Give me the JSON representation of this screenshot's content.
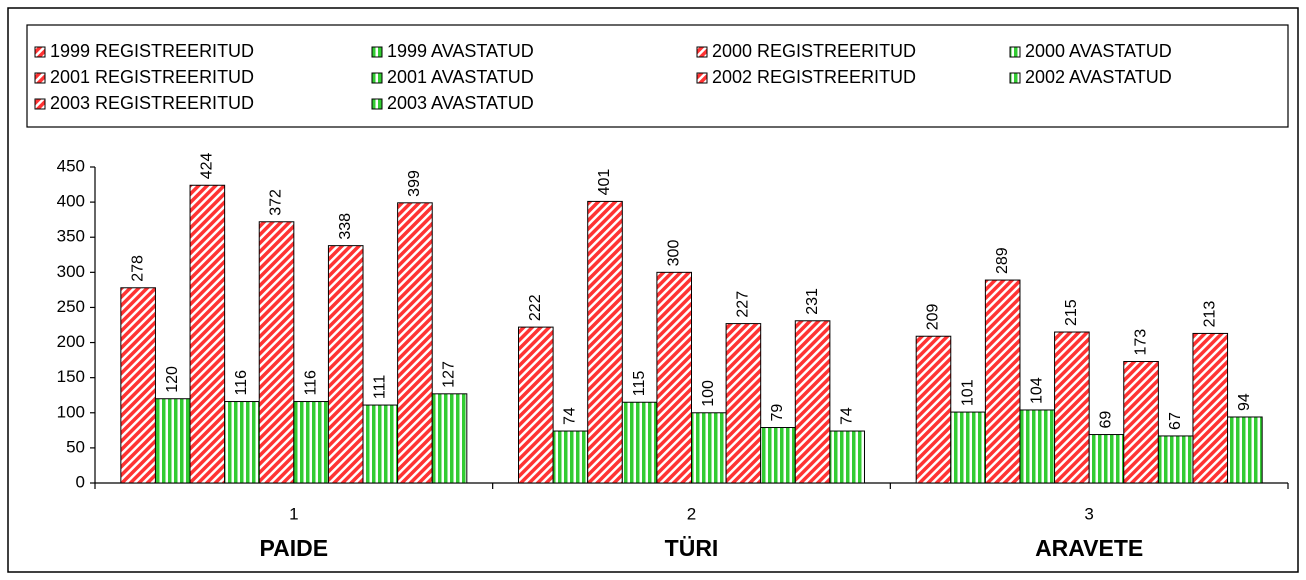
{
  "chart_data": {
    "type": "bar",
    "categories": [
      "1",
      "2",
      "3"
    ],
    "group_labels": [
      "PAIDE",
      "TÜRI",
      "ARAVETE"
    ],
    "series": [
      {
        "name": "1999 REGISTREERITUD",
        "color": "#ff3333",
        "hatch": "diagonal",
        "values": [
          278,
          222,
          209
        ]
      },
      {
        "name": "1999 AVASTATUD",
        "color": "#33cc33",
        "hatch": "vertical",
        "values": [
          120,
          74,
          101
        ]
      },
      {
        "name": "2000 REGISTREERITUD",
        "color": "#ff3333",
        "hatch": "diagonal",
        "values": [
          424,
          401,
          289
        ]
      },
      {
        "name": "2000 AVASTATUD",
        "color": "#33cc33",
        "hatch": "vertical",
        "values": [
          116,
          115,
          104
        ]
      },
      {
        "name": "2001 REGISTREERITUD",
        "color": "#ff3333",
        "hatch": "diagonal",
        "values": [
          372,
          300,
          215
        ]
      },
      {
        "name": "2001 AVASTATUD",
        "color": "#33cc33",
        "hatch": "vertical",
        "values": [
          116,
          100,
          69
        ]
      },
      {
        "name": "2002 REGISTREERITUD",
        "color": "#ff3333",
        "hatch": "diagonal",
        "values": [
          338,
          227,
          173
        ]
      },
      {
        "name": "2002 AVASTATUD",
        "color": "#33cc33",
        "hatch": "vertical",
        "values": [
          111,
          79,
          67
        ]
      },
      {
        "name": "2003 REGISTREERITUD",
        "color": "#ff3333",
        "hatch": "diagonal",
        "values": [
          399,
          231,
          213
        ]
      },
      {
        "name": "2003 AVASTATUD",
        "color": "#33cc33",
        "hatch": "vertical",
        "values": [
          127,
          74,
          94
        ]
      }
    ],
    "ylim": [
      0,
      450
    ],
    "yticks": [
      0,
      50,
      100,
      150,
      200,
      250,
      300,
      350,
      400,
      450
    ],
    "legend": "top",
    "grid": false
  }
}
